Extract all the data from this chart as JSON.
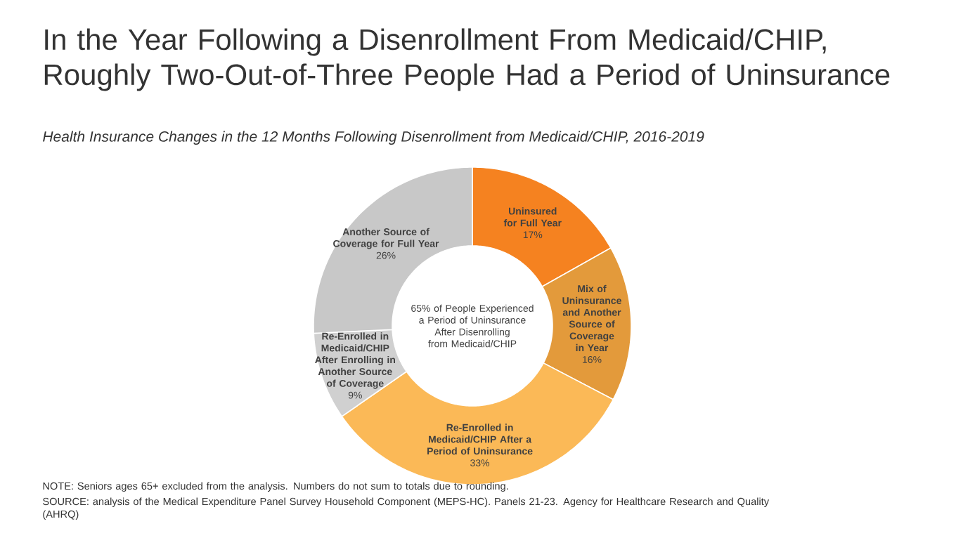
{
  "chart_data": {
    "type": "donut",
    "title": "In the Year Following a Disenrollment From Medicaid/CHIP, Roughly Two-Out-of-Three People Had a Period of Uninsurance",
    "subtitle": "Health Insurance Changes in the 12 Months Following Disenrollment from Medicaid/CHIP, 2016-2019",
    "categories": [
      "Uninsured for Full Year",
      "Mix of Uninsurance and Another Source of Coverage in Year",
      "Re-Enrolled in Medicaid/CHIP After a Period of Uninsurance",
      "Re-Enrolled in Medicaid/CHIP After Enrolling in Another Source of Coverage",
      "Another Source of Coverage for Full Year"
    ],
    "values": [
      17,
      16,
      33,
      9,
      26
    ],
    "colors": [
      "#f58220",
      "#e39a3b",
      "#fbb957",
      "#d0d0d0",
      "#c8c8c8"
    ],
    "value_labels": [
      "17%",
      "16%",
      "33%",
      "9%",
      "26%"
    ],
    "annotations": [
      "65% of People Experienced a Period of Uninsurance After Disenrolling from Medicaid/CHIP",
      "NOTE: Seniors ages 65+ excluded from the analysis. Numbers do not sum to totals due to rounding.",
      "SOURCE: analysis of the Medical Expenditure Panel Survey Household Component (MEPS-HC). Panels 21-23. Agency for Healthcare Research and Quality (AHRQ)"
    ]
  }
}
